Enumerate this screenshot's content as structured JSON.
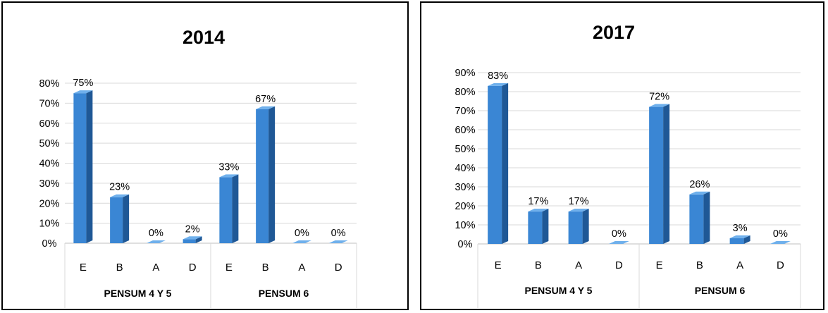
{
  "colors": {
    "bar_front": "#3a86d4",
    "bar_side": "#1f5896",
    "bar_top": "#6fb0ec",
    "gridline": "#d9d9d9",
    "axis_line": "#bfbfbf",
    "border": "#000000"
  },
  "chart_data": [
    {
      "type": "bar",
      "title": "2014",
      "categories": [
        "E",
        "B",
        "A",
        "D",
        "E",
        "B",
        "A",
        "D"
      ],
      "groups": [
        {
          "label": "PENSUM 4 Y 5",
          "categories": [
            "E",
            "B",
            "A",
            "D"
          ]
        },
        {
          "label": "PENSUM  6",
          "categories": [
            "E",
            "B",
            "A",
            "D"
          ]
        }
      ],
      "values": [
        75,
        23,
        0,
        2,
        33,
        67,
        0,
        0
      ],
      "data_labels": [
        "75%",
        "23%",
        "0%",
        "2%",
        "33%",
        "67%",
        "0%",
        "0%"
      ],
      "ylim": [
        0,
        80
      ],
      "yticks": [
        "0%",
        "10%",
        "20%",
        "30%",
        "40%",
        "50%",
        "60%",
        "70%",
        "80%"
      ],
      "ytick_values": [
        0,
        10,
        20,
        30,
        40,
        50,
        60,
        70,
        80
      ],
      "grid": true,
      "legend": "none",
      "style": "3d-column"
    },
    {
      "type": "bar",
      "title": "2017",
      "categories": [
        "E",
        "B",
        "A",
        "D",
        "E",
        "B",
        "A",
        "D"
      ],
      "groups": [
        {
          "label": "PENSUM 4 Y 5",
          "categories": [
            "E",
            "B",
            "A",
            "D"
          ]
        },
        {
          "label": "PENSUM  6",
          "categories": [
            "E",
            "B",
            "A",
            "D"
          ]
        }
      ],
      "values": [
        83,
        17,
        17,
        0,
        72,
        26,
        3,
        0
      ],
      "data_labels": [
        "83%",
        "17%",
        "17%",
        "0%",
        "72%",
        "26%",
        "3%",
        "0%"
      ],
      "ylim": [
        0,
        90
      ],
      "yticks": [
        "0%",
        "10%",
        "20%",
        "30%",
        "40%",
        "50%",
        "60%",
        "70%",
        "80%",
        "90%"
      ],
      "ytick_values": [
        0,
        10,
        20,
        30,
        40,
        50,
        60,
        70,
        80,
        90
      ],
      "grid": true,
      "legend": "none",
      "style": "3d-column"
    }
  ]
}
